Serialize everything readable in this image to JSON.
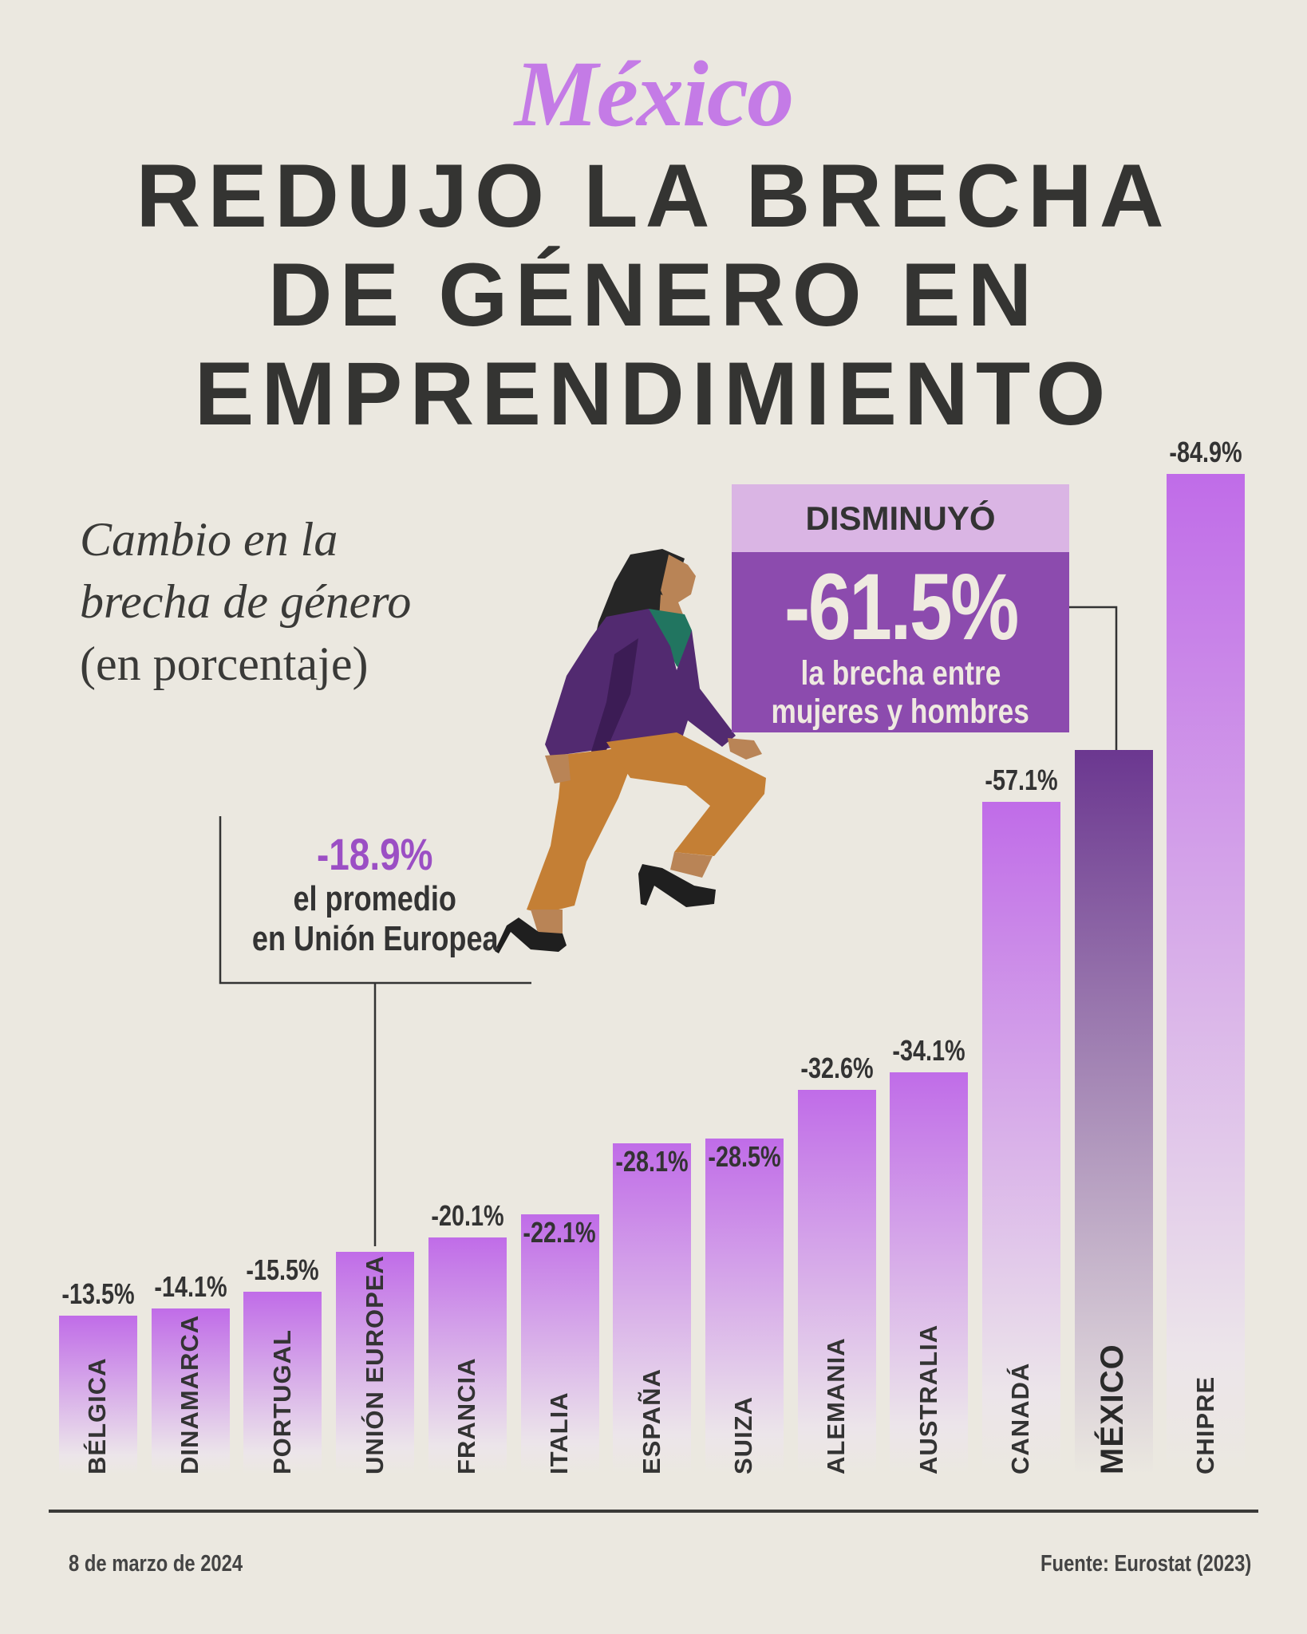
{
  "header": {
    "brand": "México",
    "headline": [
      "REDUJO LA BRECHA",
      "DE GÉNERO EN",
      "EMPRENDIMIENTO"
    ]
  },
  "subtitle": {
    "line1": "Cambio en la",
    "line2": "brecha de género",
    "unit": "(en porcentaje)"
  },
  "callout": {
    "heading": "DISMINUYÓ",
    "value": "-61.5%",
    "line1": "la brecha entre",
    "line2": "mujeres y hombres"
  },
  "eu_note": {
    "value": "-18.9%",
    "line1": "el promedio",
    "line2": "en Unión Europea"
  },
  "footer": {
    "date": "8 de marzo de 2024",
    "source": "Fuente: Eurostat (2023)"
  },
  "colors": {
    "bar_top": "#c06ce8",
    "bar_bottom": "#ece5ea",
    "highlight_top": "#6b3790",
    "highlight_bottom": "#dcd3d9",
    "accent": "#c47be6",
    "background": "#ebe8e0"
  },
  "chart_data": {
    "type": "bar",
    "title": "Cambio en la brecha de género",
    "ylabel": "(en porcentaje)",
    "categories": [
      "BÉLGICA",
      "DINAMARCA",
      "PORTUGAL",
      "UNIÓN EUROPEA",
      "FRANCIA",
      "ITALIA",
      "ESPAÑA",
      "SUIZA",
      "ALEMANIA",
      "AUSTRALIA",
      "CANADÁ",
      "MÉXICO",
      "CHIPRE"
    ],
    "values": [
      -13.5,
      -14.1,
      -15.5,
      -18.9,
      -20.1,
      -22.1,
      -28.1,
      -28.5,
      -32.6,
      -34.1,
      -57.1,
      -61.5,
      -84.9
    ],
    "value_labels": [
      "-13.5%",
      "-14.1%",
      "-15.5%",
      "",
      "-20.1%",
      "-22.1%",
      "-28.1%",
      "-28.5%",
      "-32.6%",
      "-34.1%",
      "-57.1%",
      "",
      "-84.9%"
    ],
    "highlight": "MÉXICO",
    "ylim": [
      0,
      -90
    ],
    "grid": false,
    "legend": "none"
  }
}
